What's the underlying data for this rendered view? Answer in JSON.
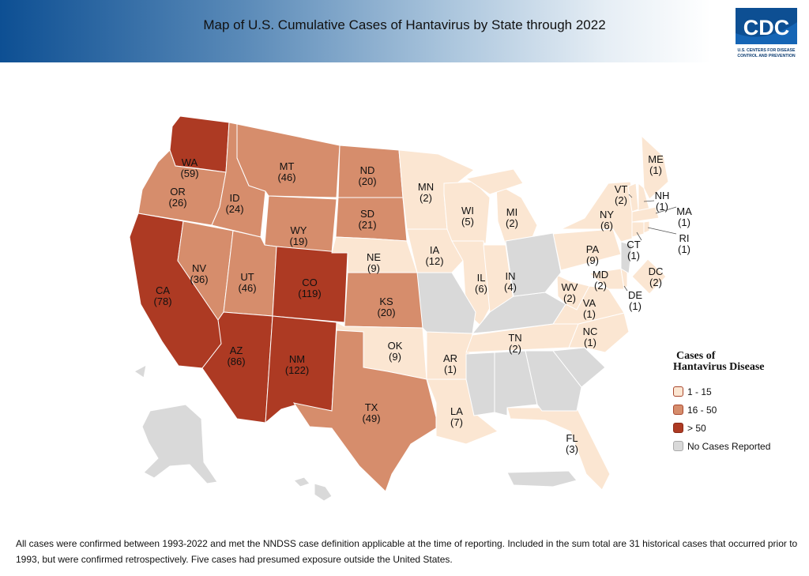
{
  "header": {
    "title": "Map of U.S. Cumulative Cases of Hantavirus by State through 2022",
    "logo_text": "CDC",
    "logo_subtext": "U.S. CENTERS FOR DISEASE CONTROL AND PREVENTION"
  },
  "colors": {
    "low": "#fbe6d2",
    "mid": "#d68d6c",
    "high": "#ad3a23",
    "none": "#d9d9d9",
    "header_blue": "#0d4f93"
  },
  "legend": {
    "title_line1": "Cases of",
    "title_line2": "Hantavirus Disease",
    "items": [
      {
        "label": "1 - 15",
        "category": "low"
      },
      {
        "label": "16 - 50",
        "category": "mid"
      },
      {
        "label": "> 50",
        "category": "high"
      },
      {
        "label": "No Cases Reported",
        "category": "none"
      }
    ]
  },
  "states": [
    {
      "abbr": "WA",
      "cases": "(59)",
      "category": "high"
    },
    {
      "abbr": "OR",
      "cases": "(26)",
      "category": "mid"
    },
    {
      "abbr": "CA",
      "cases": "(78)",
      "category": "high"
    },
    {
      "abbr": "NV",
      "cases": "(36)",
      "category": "mid"
    },
    {
      "abbr": "ID",
      "cases": "(24)",
      "category": "mid"
    },
    {
      "abbr": "MT",
      "cases": "(46)",
      "category": "mid"
    },
    {
      "abbr": "WY",
      "cases": "(19)",
      "category": "mid"
    },
    {
      "abbr": "UT",
      "cases": "(46)",
      "category": "mid"
    },
    {
      "abbr": "CO",
      "cases": "(119)",
      "category": "high"
    },
    {
      "abbr": "AZ",
      "cases": "(86)",
      "category": "high"
    },
    {
      "abbr": "NM",
      "cases": "(122)",
      "category": "high"
    },
    {
      "abbr": "ND",
      "cases": "(20)",
      "category": "mid"
    },
    {
      "abbr": "SD",
      "cases": "(21)",
      "category": "mid"
    },
    {
      "abbr": "NE",
      "cases": "(9)",
      "category": "low"
    },
    {
      "abbr": "KS",
      "cases": "(20)",
      "category": "mid"
    },
    {
      "abbr": "OK",
      "cases": "(9)",
      "category": "low"
    },
    {
      "abbr": "TX",
      "cases": "(49)",
      "category": "mid"
    },
    {
      "abbr": "MN",
      "cases": "(2)",
      "category": "low"
    },
    {
      "abbr": "IA",
      "cases": "(12)",
      "category": "low"
    },
    {
      "abbr": "WI",
      "cases": "(5)",
      "category": "low"
    },
    {
      "abbr": "IL",
      "cases": "(6)",
      "category": "low"
    },
    {
      "abbr": "IN",
      "cases": "(4)",
      "category": "low"
    },
    {
      "abbr": "MI",
      "cases": "(2)",
      "category": "low"
    },
    {
      "abbr": "AR",
      "cases": "(1)",
      "category": "low"
    },
    {
      "abbr": "LA",
      "cases": "(7)",
      "category": "low"
    },
    {
      "abbr": "TN",
      "cases": "(2)",
      "category": "low"
    },
    {
      "abbr": "FL",
      "cases": "(3)",
      "category": "low"
    },
    {
      "abbr": "NC",
      "cases": "(1)",
      "category": "low"
    },
    {
      "abbr": "VA",
      "cases": "(1)",
      "category": "low"
    },
    {
      "abbr": "WV",
      "cases": "(2)",
      "category": "low"
    },
    {
      "abbr": "PA",
      "cases": "(9)",
      "category": "low"
    },
    {
      "abbr": "NY",
      "cases": "(6)",
      "category": "low"
    },
    {
      "abbr": "MD",
      "cases": "(2)",
      "category": "low"
    },
    {
      "abbr": "DE",
      "cases": "(1)",
      "category": "low"
    },
    {
      "abbr": "VT",
      "cases": "(2)",
      "category": "low"
    },
    {
      "abbr": "NH",
      "cases": "(1)",
      "category": "low"
    },
    {
      "abbr": "ME",
      "cases": "(1)",
      "category": "low"
    },
    {
      "abbr": "MA",
      "cases": "(1)",
      "category": "low"
    },
    {
      "abbr": "RI",
      "cases": "(1)",
      "category": "low"
    },
    {
      "abbr": "CT",
      "cases": "(1)",
      "category": "low"
    },
    {
      "abbr": "DC",
      "cases": "(2)",
      "category": "low"
    },
    {
      "abbr": "MO",
      "cases": "",
      "category": "none"
    },
    {
      "abbr": "KY",
      "cases": "",
      "category": "none"
    },
    {
      "abbr": "OH",
      "cases": "",
      "category": "none"
    },
    {
      "abbr": "MS",
      "cases": "",
      "category": "none"
    },
    {
      "abbr": "AL",
      "cases": "",
      "category": "none"
    },
    {
      "abbr": "GA",
      "cases": "",
      "category": "none"
    },
    {
      "abbr": "SC",
      "cases": "",
      "category": "none"
    },
    {
      "abbr": "NJ",
      "cases": "",
      "category": "none"
    },
    {
      "abbr": "AK",
      "cases": "",
      "category": "none"
    },
    {
      "abbr": "HI",
      "cases": "",
      "category": "none"
    },
    {
      "abbr": "PR",
      "cases": "",
      "category": "none"
    }
  ],
  "footnote": "All cases were confirmed between 1993-2022 and met the NNDSS case definition applicable at the time of reporting. Included in the sum total are 31 historical cases that occurred prior to 1993, but were confirmed retrospectively. Five cases had presumed exposure outside the United States."
}
